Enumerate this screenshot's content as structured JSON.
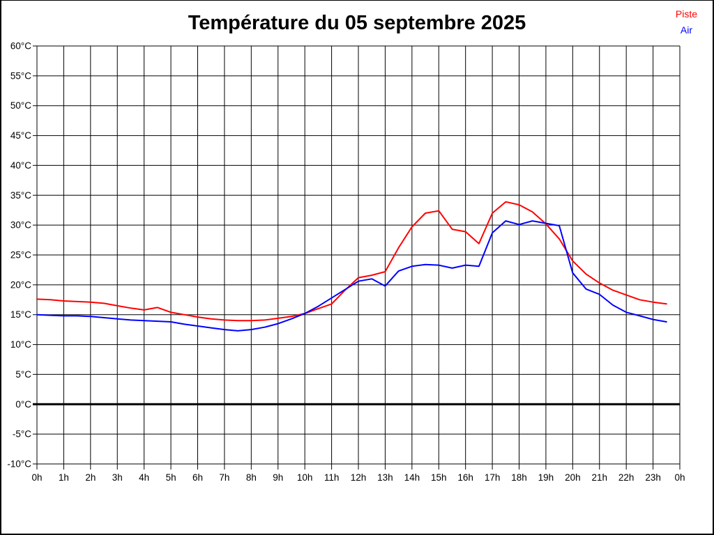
{
  "title": "Température du 05 septembre 2025",
  "legend": {
    "piste": {
      "label": "Piste",
      "color": "#ff0000"
    },
    "air": {
      "label": "Air",
      "color": "#0000ff"
    }
  },
  "colors": {
    "grid": "#000000",
    "axis": "#000000",
    "zero_line": "#000000",
    "background": "#ffffff"
  },
  "chart_data": {
    "type": "line",
    "title": "Température du 05 septembre 2025",
    "xlabel": "",
    "ylabel": "",
    "x_unit": "h",
    "y_unit": "°C",
    "xlim": [
      0,
      24
    ],
    "ylim": [
      -10,
      60
    ],
    "grid": true,
    "legend_position": "top-right",
    "zero_line_emphasized": true,
    "x_tick_values": [
      0,
      1,
      2,
      3,
      4,
      5,
      6,
      7,
      8,
      9,
      10,
      11,
      12,
      13,
      14,
      15,
      16,
      17,
      18,
      19,
      20,
      21,
      22,
      23,
      24
    ],
    "x_tick_labels": [
      "0h",
      "1h",
      "2h",
      "3h",
      "4h",
      "5h",
      "6h",
      "7h",
      "8h",
      "9h",
      "10h",
      "11h",
      "12h",
      "13h",
      "14h",
      "15h",
      "16h",
      "17h",
      "18h",
      "19h",
      "20h",
      "21h",
      "22h",
      "23h",
      "0h"
    ],
    "y_tick_values": [
      60,
      55,
      50,
      45,
      40,
      35,
      30,
      25,
      20,
      15,
      10,
      5,
      0,
      -5,
      -10
    ],
    "y_tick_labels": [
      "60°C",
      "55°C",
      "50°C",
      "45°C",
      "40°C",
      "35°C",
      "30°C",
      "25°C",
      "20°C",
      "15°C",
      "10°C",
      "5°C",
      "0°C",
      "-5°C",
      "-10°C"
    ],
    "x": [
      0,
      0.5,
      1,
      1.5,
      2,
      2.5,
      3,
      3.5,
      4,
      4.5,
      5,
      5.5,
      6,
      6.5,
      7,
      7.5,
      8,
      8.5,
      9,
      9.5,
      10,
      10.5,
      11,
      11.5,
      12,
      12.5,
      13,
      13.5,
      14,
      14.5,
      15,
      15.5,
      16,
      16.5,
      17,
      17.5,
      18,
      18.5,
      19,
      19.5,
      20,
      20.5,
      21,
      21.5,
      22,
      22.5,
      23,
      23.5
    ],
    "series": [
      {
        "name": "Piste",
        "color": "#ff0000",
        "values": [
          17.6,
          17.5,
          17.3,
          17.2,
          17.1,
          16.9,
          16.5,
          16.1,
          15.8,
          16.2,
          15.4,
          15.0,
          14.6,
          14.3,
          14.1,
          14.0,
          14.0,
          14.1,
          14.4,
          14.7,
          15.2,
          16.0,
          16.8,
          19.1,
          21.2,
          21.6,
          22.2,
          26.2,
          29.7,
          32.0,
          32.4,
          29.3,
          28.9,
          26.9,
          32.0,
          33.9,
          33.4,
          32.2,
          30.2,
          27.7,
          24.0,
          21.8,
          20.3,
          19.1,
          18.3,
          17.5,
          17.1,
          16.8
        ]
      },
      {
        "name": "Air",
        "color": "#0000ff",
        "values": [
          15.0,
          14.9,
          14.8,
          14.8,
          14.7,
          14.5,
          14.3,
          14.1,
          14.0,
          13.9,
          13.8,
          13.4,
          13.1,
          12.8,
          12.5,
          12.3,
          12.5,
          12.9,
          13.5,
          14.3,
          15.2,
          16.4,
          17.8,
          19.2,
          20.6,
          21.0,
          19.8,
          22.3,
          23.1,
          23.4,
          23.3,
          22.8,
          23.3,
          23.1,
          28.7,
          30.7,
          30.1,
          30.7,
          30.3,
          29.9,
          22.0,
          19.3,
          18.4,
          16.6,
          15.4,
          14.8,
          14.2,
          13.8
        ]
      }
    ]
  }
}
